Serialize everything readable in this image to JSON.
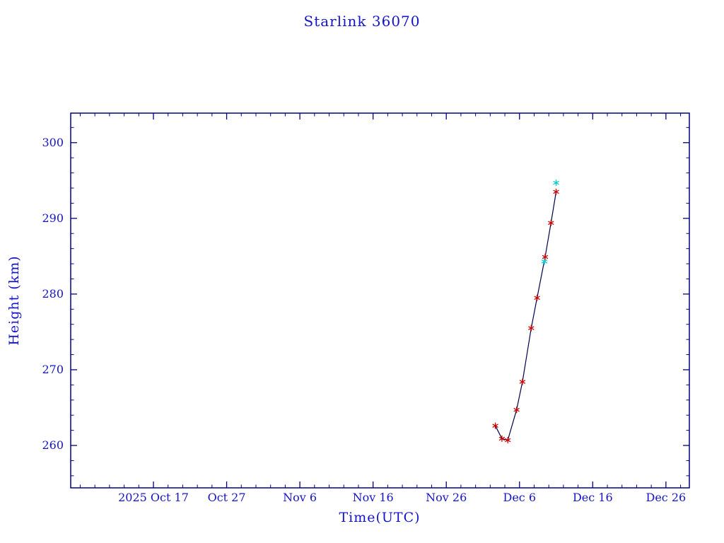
{
  "page": {
    "background": "#ffffff"
  },
  "chart_data": {
    "type": "line",
    "title": "Starlink 36070",
    "xlabel": "Time(UTC)",
    "ylabel": "Height (km)",
    "axis_color": "#000080",
    "text_color": "#1515c8",
    "line_color": "#000050",
    "xlim": [
      4.7,
      89.2
    ],
    "ylim": [
      254.4,
      303.9
    ],
    "x_axis_unit": "days since 2025-10-01",
    "x_ticks": [
      {
        "pos": 16,
        "label": "2025 Oct 17"
      },
      {
        "pos": 26,
        "label": "Oct 27"
      },
      {
        "pos": 36,
        "label": "Nov 6"
      },
      {
        "pos": 46,
        "label": "Nov 16"
      },
      {
        "pos": 56,
        "label": "Nov 26"
      },
      {
        "pos": 66,
        "label": "Dec 6"
      },
      {
        "pos": 76,
        "label": "Dec 16"
      },
      {
        "pos": 86,
        "label": "Dec 26"
      }
    ],
    "x_minor_step": 2,
    "y_ticks": [
      {
        "pos": 260,
        "label": "260"
      },
      {
        "pos": 270,
        "label": "270"
      },
      {
        "pos": 280,
        "label": "280"
      },
      {
        "pos": 290,
        "label": "290"
      },
      {
        "pos": 300,
        "label": "300"
      }
    ],
    "y_minor_step": 2,
    "grid": false,
    "legend": "none",
    "series": [
      {
        "name": "observed-height",
        "marker": "asterisk",
        "marker_color": "#cc0000",
        "has_line": true,
        "points": [
          [
            62.7,
            262.6
          ],
          [
            63.6,
            260.9
          ],
          [
            64.4,
            260.7
          ],
          [
            65.6,
            264.7
          ],
          [
            66.4,
            268.4
          ],
          [
            67.6,
            275.5
          ],
          [
            68.4,
            279.5
          ],
          [
            69.5,
            284.9
          ],
          [
            70.3,
            289.4
          ],
          [
            71.0,
            293.5
          ]
        ]
      },
      {
        "name": "predicted-height",
        "marker": "asterisk",
        "marker_color": "#00cccc",
        "has_line": false,
        "points": [
          [
            69.4,
            284.3
          ],
          [
            71.0,
            294.7
          ]
        ]
      }
    ]
  }
}
